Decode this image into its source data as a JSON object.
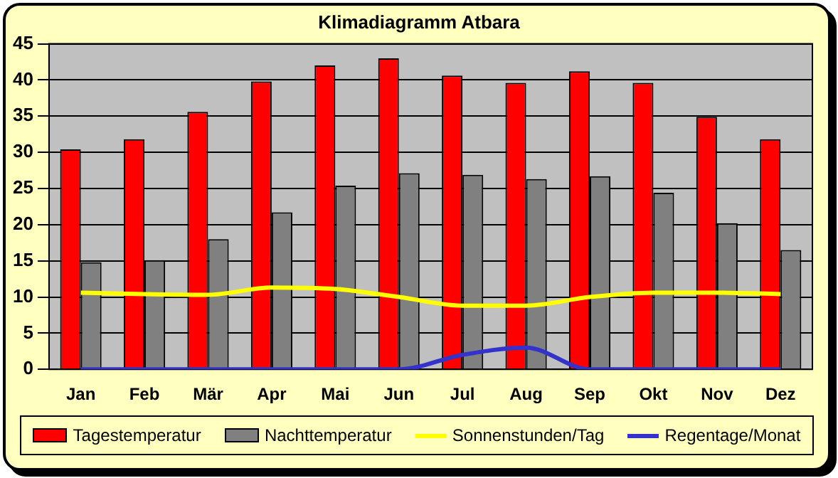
{
  "chart_data": {
    "type": "bar",
    "title": "Klimadiagramm Atbara",
    "categories": [
      "Jan",
      "Feb",
      "Mär",
      "Apr",
      "Mai",
      "Jun",
      "Jul",
      "Aug",
      "Sep",
      "Okt",
      "Nov",
      "Dez"
    ],
    "series": [
      {
        "name": "Tagestemperatur",
        "color": "#ff0000",
        "values": [
          30.4,
          31.8,
          35.6,
          39.8,
          42,
          43,
          40.6,
          39.6,
          41.2,
          39.6,
          34.9,
          31.8
        ]
      },
      {
        "name": "Nachttemperatur",
        "color": "#808080",
        "values": [
          14.8,
          15.1,
          18,
          21.7,
          25.4,
          27.1,
          26.9,
          26.3,
          26.7,
          24.4,
          20.2,
          16.5
        ]
      },
      {
        "name": "Sonnenstunden/Tag",
        "type": "line",
        "color": "#ffff00",
        "values": [
          10.6,
          10.4,
          10.3,
          11.3,
          11.1,
          10,
          8.8,
          8.8,
          10,
          10.6,
          10.6,
          10.4
        ]
      },
      {
        "name": "Regentage/Monat",
        "type": "line",
        "color": "#3333cc",
        "values": [
          0,
          0,
          0,
          0,
          0,
          0,
          2,
          3,
          0,
          0,
          0,
          0
        ]
      }
    ],
    "ylim": [
      0,
      45
    ],
    "yticks": [
      0,
      5,
      10,
      15,
      20,
      25,
      30,
      35,
      40,
      45
    ],
    "grid": "y",
    "legend": "bottom",
    "marker": "none"
  }
}
